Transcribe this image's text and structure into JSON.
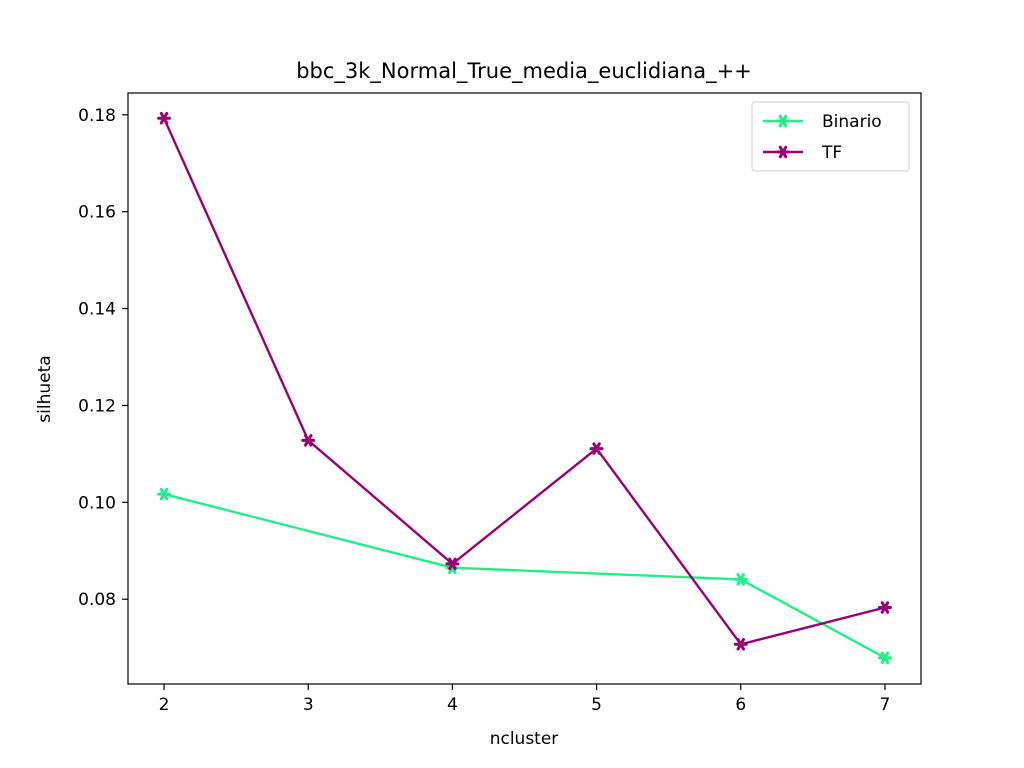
{
  "chart_data": {
    "type": "line",
    "title": "bbc_3k_Normal_True_media_euclidiana_++",
    "xlabel": "ncluster",
    "ylabel": "silhueta",
    "x": [
      2,
      3,
      4,
      5,
      6,
      7
    ],
    "xlim": [
      1.75,
      7.25
    ],
    "ylim": [
      0.0625,
      0.1845
    ],
    "xticks": [
      "2",
      "3",
      "4",
      "5",
      "6",
      "7"
    ],
    "yticks": [
      "0.08",
      "0.10",
      "0.12",
      "0.14",
      "0.16",
      "0.18"
    ],
    "grid": false,
    "legend_position": "top-right",
    "series": [
      {
        "name": "Binario",
        "color": "#22f087",
        "marker": "star",
        "values": [
          0.1017,
          null,
          0.0865,
          null,
          0.0841,
          0.0679
        ]
      },
      {
        "name": "TF",
        "color": "#990073",
        "marker": "star",
        "values": [
          0.1793,
          0.1128,
          0.0873,
          0.1111,
          0.0707,
          0.0783
        ]
      }
    ]
  }
}
